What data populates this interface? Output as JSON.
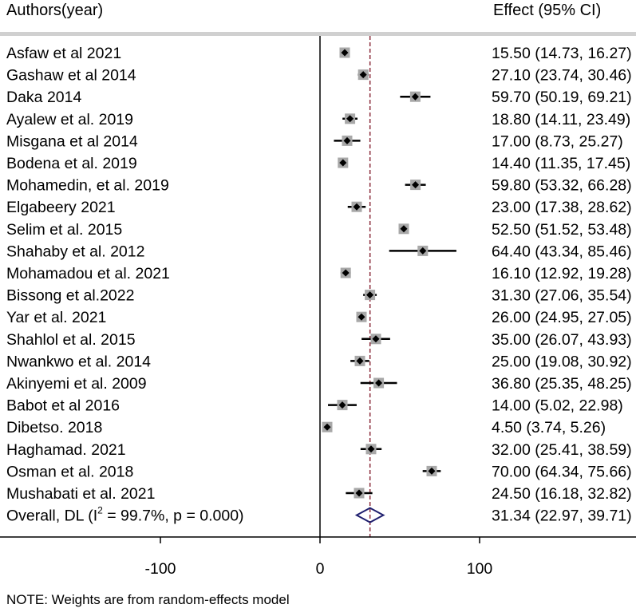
{
  "chart_data": {
    "type": "forest",
    "header_left": "Authors(year)",
    "header_right": "Effect (95% CI)",
    "xticks": [
      -100,
      0,
      100
    ],
    "xlim": [
      -200,
      200
    ],
    "reference_line": 0,
    "overall_line": 31.34,
    "studies": [
      {
        "label": "Asfaw et al 2021",
        "effect": 15.5,
        "lo": 14.73,
        "hi": 16.27,
        "ci_text": "15.50 (14.73, 16.27)"
      },
      {
        "label": "Gashaw et al 2014",
        "effect": 27.1,
        "lo": 23.74,
        "hi": 30.46,
        "ci_text": "27.10 (23.74, 30.46)"
      },
      {
        "label": "Daka 2014",
        "effect": 59.7,
        "lo": 50.19,
        "hi": 69.21,
        "ci_text": "59.70 (50.19, 69.21)"
      },
      {
        "label": "Ayalew et al.  2019",
        "effect": 18.8,
        "lo": 14.11,
        "hi": 23.49,
        "ci_text": "18.80 (14.11, 23.49)"
      },
      {
        "label": "Misgana et al  2014",
        "effect": 17.0,
        "lo": 8.73,
        "hi": 25.27,
        "ci_text": "17.00 (8.73, 25.27)"
      },
      {
        "label": "Bodena et al. 2019",
        "effect": 14.4,
        "lo": 11.35,
        "hi": 17.45,
        "ci_text": "14.40 (11.35, 17.45)"
      },
      {
        "label": "Mohamedin, et al. 2019",
        "effect": 59.8,
        "lo": 53.32,
        "hi": 66.28,
        "ci_text": "59.80 (53.32, 66.28)"
      },
      {
        "label": "Elgabeery 2021",
        "effect": 23.0,
        "lo": 17.38,
        "hi": 28.62,
        "ci_text": "23.00 (17.38, 28.62)"
      },
      {
        "label": "Selim et al. 2015",
        "effect": 52.5,
        "lo": 51.52,
        "hi": 53.48,
        "ci_text": "52.50 (51.52, 53.48)"
      },
      {
        "label": "Shahaby et al. 2012",
        "effect": 64.4,
        "lo": 43.34,
        "hi": 85.46,
        "ci_text": "64.40 (43.34, 85.46)"
      },
      {
        "label": "Mohamadou et al. 2021",
        "effect": 16.1,
        "lo": 12.92,
        "hi": 19.28,
        "ci_text": "16.10 (12.92, 19.28)"
      },
      {
        "label": "Bissong et al.2022",
        "effect": 31.3,
        "lo": 27.06,
        "hi": 35.54,
        "ci_text": "31.30 (27.06, 35.54)"
      },
      {
        "label": "Yar et al. 2021",
        "effect": 26.0,
        "lo": 24.95,
        "hi": 27.05,
        "ci_text": "26.00 (24.95, 27.05)"
      },
      {
        "label": "Shahlol et al. 2015",
        "effect": 35.0,
        "lo": 26.07,
        "hi": 43.93,
        "ci_text": "35.00 (26.07, 43.93)"
      },
      {
        "label": "Nwankwo et al. 2014",
        "effect": 25.0,
        "lo": 19.08,
        "hi": 30.92,
        "ci_text": "25.00 (19.08, 30.92)"
      },
      {
        "label": "Akinyemi et al. 2009",
        "effect": 36.8,
        "lo": 25.35,
        "hi": 48.25,
        "ci_text": "36.80 (25.35, 48.25)"
      },
      {
        "label": "Babot et al 2016",
        "effect": 14.0,
        "lo": 5.02,
        "hi": 22.98,
        "ci_text": "14.00 (5.02, 22.98)"
      },
      {
        "label": "Dibetso. 2018",
        "effect": 4.5,
        "lo": 3.74,
        "hi": 5.26,
        "ci_text": "4.50 (3.74, 5.26)"
      },
      {
        "label": "Haghamad. 2021",
        "effect": 32.0,
        "lo": 25.41,
        "hi": 38.59,
        "ci_text": "32.00 (25.41, 38.59)"
      },
      {
        "label": "Osman et al. 2018",
        "effect": 70.0,
        "lo": 64.34,
        "hi": 75.66,
        "ci_text": "70.00 (64.34, 75.66)"
      },
      {
        "label": "Mushabati et al. 2021",
        "effect": 24.5,
        "lo": 16.18,
        "hi": 32.82,
        "ci_text": "24.50 (16.18, 32.82)"
      }
    ],
    "overall": {
      "label_prefix": "Overall, DL (I",
      "label_sup": "2",
      "label_suffix": " = 99.7%, p = 0.000)",
      "effect": 31.34,
      "lo": 22.97,
      "hi": 39.71,
      "ci_text": "31.34 (22.97, 39.71)"
    },
    "note": "NOTE: Weights are from random-effects model",
    "colors": {
      "marker": "#000000",
      "weight_box": "#a8a8a8",
      "overall_line": "#8b2a3a",
      "diamond": "#1f1f6e",
      "header_band": "#d0d0d0"
    }
  }
}
